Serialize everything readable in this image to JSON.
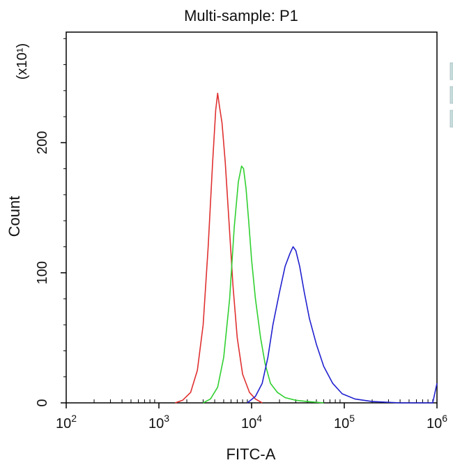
{
  "chart_data": {
    "type": "line",
    "title": "Multi-sample: P1",
    "xlabel": "FITC-A",
    "ylabel": "Count",
    "y_multiplier": "(x10¹)",
    "x_scale": "log",
    "xlim": [
      100,
      1000000
    ],
    "ylim": [
      0,
      285
    ],
    "x_ticks": [
      {
        "base": "10",
        "exp": "2",
        "value": 100
      },
      {
        "base": "10",
        "exp": "3",
        "value": 1000
      },
      {
        "base": "10",
        "exp": "4",
        "value": 10000
      },
      {
        "base": "10",
        "exp": "5",
        "value": 100000
      },
      {
        "base": "10",
        "exp": "6",
        "value": 1000000
      }
    ],
    "y_ticks": [
      {
        "label": "0",
        "value": 0
      },
      {
        "label": "100",
        "value": 100
      },
      {
        "label": "200",
        "value": 200
      }
    ],
    "grid": false,
    "legend": "right",
    "series": [
      {
        "color": "#e03030",
        "x": [
          1500,
          1800,
          2200,
          2600,
          3000,
          3400,
          3800,
          4100,
          4300,
          4500,
          4800,
          5200,
          5700,
          6300,
          7000,
          8000,
          9500,
          11000,
          13000
        ],
        "y": [
          0,
          2,
          8,
          25,
          60,
          120,
          185,
          225,
          238,
          228,
          215,
          185,
          140,
          90,
          50,
          22,
          8,
          3,
          0
        ]
      },
      {
        "color": "#30d030",
        "x": [
          3000,
          3600,
          4300,
          5000,
          5800,
          6500,
          7200,
          7800,
          8200,
          8700,
          9300,
          10000,
          11000,
          12500,
          14000,
          16000,
          19000,
          23000,
          30000,
          40000,
          60000
        ],
        "y": [
          0,
          3,
          12,
          35,
          80,
          135,
          170,
          182,
          180,
          165,
          140,
          110,
          80,
          50,
          30,
          15,
          8,
          4,
          2,
          1,
          0
        ]
      },
      {
        "color": "#2020d0",
        "x": [
          9000,
          11000,
          13000,
          15000,
          17000,
          20000,
          23000,
          26000,
          28000,
          30000,
          33000,
          37000,
          42000,
          50000,
          60000,
          75000,
          95000,
          130000,
          200000,
          400000,
          900000,
          1000000
        ],
        "y": [
          0,
          5,
          15,
          35,
          60,
          85,
          105,
          115,
          120,
          117,
          105,
          85,
          65,
          45,
          28,
          15,
          7,
          3,
          1,
          0,
          0,
          15
        ]
      }
    ]
  }
}
